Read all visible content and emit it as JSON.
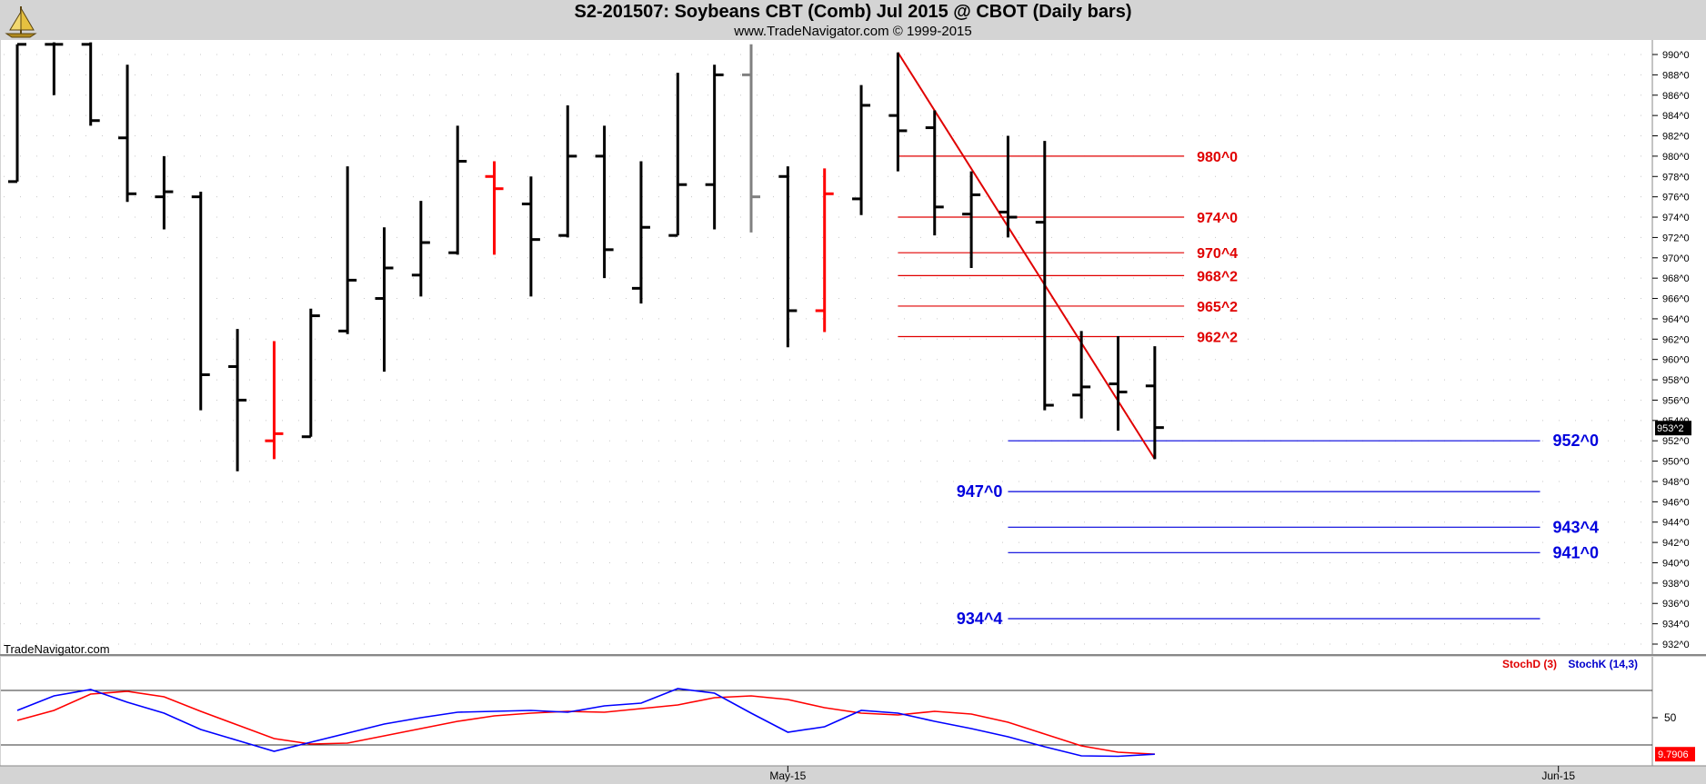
{
  "header": {
    "title": "S2-201507:  Soybeans CBT (Comb) Jul 2015 @ CBOT  (Daily bars)",
    "subtitle": "www.TradeNavigator.com © 1999-2015",
    "watermark": "TradeNavigator.com"
  },
  "colors": {
    "bar": "#000000",
    "down_bar": "#ff0000",
    "red_level": "#e00000",
    "blue_level": "#0000dd",
    "stoch_d": "#ff0000",
    "stoch_k": "#0000ff",
    "axis_marker": "#000000",
    "page_bg": "#d4d4d4",
    "plot_bg": "#ffffff"
  },
  "chart_data": [
    {
      "type": "ohlc",
      "ylim": [
        931,
        991.2
      ],
      "y_ticks": [
        "990^0",
        "988^0",
        "986^0",
        "984^0",
        "982^0",
        "980^0",
        "978^0",
        "976^0",
        "974^0",
        "972^0",
        "970^0",
        "968^0",
        "966^0",
        "964^0",
        "962^0",
        "960^0",
        "958^0",
        "956^0",
        "954^0",
        "952^0",
        "950^0",
        "948^0",
        "946^0",
        "944^0",
        "942^0",
        "940^0",
        "938^0",
        "936^0",
        "934^0",
        "932^0"
      ],
      "y_tick_values": [
        990,
        988,
        986,
        984,
        982,
        980,
        978,
        976,
        974,
        972,
        970,
        968,
        966,
        964,
        962,
        960,
        958,
        956,
        954,
        952,
        950,
        948,
        946,
        944,
        942,
        940,
        938,
        936,
        934,
        932
      ],
      "x_labels": [
        {
          "label": "May-15",
          "bar": 21
        },
        {
          "label": "Jun-15",
          "bar": 42
        }
      ],
      "current_price": {
        "label": "953^2",
        "value": 953.25
      },
      "bars": [
        {
          "o": 977.5,
          "h": 991.0,
          "l": 977.5,
          "c": 991.0,
          "color": "black"
        },
        {
          "o": 991.0,
          "h": 991.2,
          "l": 986.0,
          "c": 991.0,
          "color": "black"
        },
        {
          "o": 991.0,
          "h": 991.2,
          "l": 983.0,
          "c": 983.5,
          "color": "black"
        },
        {
          "o": 981.8,
          "h": 989.0,
          "l": 975.5,
          "c": 976.3,
          "color": "black"
        },
        {
          "o": 976.0,
          "h": 980.0,
          "l": 972.8,
          "c": 976.5,
          "color": "black"
        },
        {
          "o": 976.0,
          "h": 976.5,
          "l": 955.0,
          "c": 958.5,
          "color": "black"
        },
        {
          "o": 959.3,
          "h": 963.0,
          "l": 949.0,
          "c": 956.0,
          "color": "black"
        },
        {
          "o": 952.0,
          "h": 961.8,
          "l": 950.2,
          "c": 952.7,
          "color": "red"
        },
        {
          "o": 952.4,
          "h": 965.0,
          "l": 952.4,
          "c": 964.3,
          "color": "black"
        },
        {
          "o": 962.8,
          "h": 979.0,
          "l": 962.5,
          "c": 967.8,
          "color": "black"
        },
        {
          "o": 966.0,
          "h": 973.0,
          "l": 958.8,
          "c": 969.0,
          "color": "black"
        },
        {
          "o": 968.3,
          "h": 975.6,
          "l": 966.2,
          "c": 971.5,
          "color": "black"
        },
        {
          "o": 970.5,
          "h": 983.0,
          "l": 970.3,
          "c": 979.5,
          "color": "black"
        },
        {
          "o": 978.0,
          "h": 979.5,
          "l": 970.3,
          "c": 976.8,
          "color": "red"
        },
        {
          "o": 975.3,
          "h": 978.0,
          "l": 966.2,
          "c": 971.8,
          "color": "black"
        },
        {
          "o": 972.2,
          "h": 985.0,
          "l": 972.0,
          "c": 980.0,
          "color": "black"
        },
        {
          "o": 980.0,
          "h": 983.0,
          "l": 968.0,
          "c": 970.8,
          "color": "black"
        },
        {
          "o": 967.0,
          "h": 979.5,
          "l": 965.5,
          "c": 973.0,
          "color": "black"
        },
        {
          "o": 972.2,
          "h": 988.2,
          "l": 972.2,
          "c": 977.2,
          "color": "black"
        },
        {
          "o": 977.2,
          "h": 989.0,
          "l": 972.8,
          "c": 988.0,
          "color": "black"
        },
        {
          "o": 988.0,
          "h": 991.0,
          "l": 972.5,
          "c": 976.0,
          "color": "gray"
        },
        {
          "o": 978.0,
          "h": 979.0,
          "l": 961.2,
          "c": 964.8,
          "color": "black"
        },
        {
          "o": 964.8,
          "h": 978.8,
          "l": 962.7,
          "c": 976.3,
          "color": "red"
        },
        {
          "o": 975.8,
          "h": 987.0,
          "l": 974.2,
          "c": 985.0,
          "color": "black"
        },
        {
          "o": 984.0,
          "h": 990.2,
          "l": 978.5,
          "c": 982.5,
          "color": "black"
        },
        {
          "o": 982.8,
          "h": 984.5,
          "l": 972.2,
          "c": 975.0,
          "color": "black"
        },
        {
          "o": 974.3,
          "h": 978.5,
          "l": 969.0,
          "c": 976.2,
          "color": "black"
        },
        {
          "o": 974.5,
          "h": 982.0,
          "l": 972.0,
          "c": 974.0,
          "color": "black"
        },
        {
          "o": 973.5,
          "h": 981.5,
          "l": 955.0,
          "c": 955.5,
          "color": "black"
        },
        {
          "o": 956.5,
          "h": 962.8,
          "l": 954.2,
          "c": 957.3,
          "color": "black"
        },
        {
          "o": 957.6,
          "h": 962.3,
          "l": 953.0,
          "c": 956.8,
          "color": "black"
        },
        {
          "o": 957.4,
          "h": 961.3,
          "l": 950.2,
          "c": 953.3,
          "color": "black"
        }
      ],
      "trendline": {
        "from_bar": 24,
        "from_value": 990.2,
        "to_bar": 31,
        "to_value": 950.2,
        "color": "#e00000"
      },
      "levels": [
        {
          "label": "980^0",
          "value": 980.0,
          "color": "red",
          "from_bar": 24,
          "to_bar": 31.8,
          "label_side": "right"
        },
        {
          "label": "974^0",
          "value": 974.0,
          "color": "red",
          "from_bar": 24,
          "to_bar": 31.8,
          "label_side": "right"
        },
        {
          "label": "970^4",
          "value": 970.5,
          "color": "red",
          "from_bar": 24,
          "to_bar": 31.8,
          "label_side": "right"
        },
        {
          "label": "968^2",
          "value": 968.25,
          "color": "red",
          "from_bar": 24,
          "to_bar": 31.8,
          "label_side": "right"
        },
        {
          "label": "965^2",
          "value": 965.25,
          "color": "red",
          "from_bar": 24,
          "to_bar": 31.8,
          "label_side": "right"
        },
        {
          "label": "962^2",
          "value": 962.25,
          "color": "red",
          "from_bar": 24,
          "to_bar": 31.8,
          "label_side": "right"
        },
        {
          "label": "952^0",
          "value": 952.0,
          "color": "blue",
          "from_bar": 27,
          "to_bar": 41.5,
          "label_side": "right"
        },
        {
          "label": "947^0",
          "value": 947.0,
          "color": "blue",
          "from_bar": 27,
          "to_bar": 41.5,
          "label_side": "left"
        },
        {
          "label": "943^4",
          "value": 943.5,
          "color": "blue",
          "from_bar": 27,
          "to_bar": 41.5,
          "label_side": "right"
        },
        {
          "label": "941^0",
          "value": 941.0,
          "color": "blue",
          "from_bar": 27,
          "to_bar": 41.5,
          "label_side": "right"
        },
        {
          "label": "934^4",
          "value": 934.5,
          "color": "blue",
          "from_bar": 27,
          "to_bar": 41.5,
          "label_side": "left"
        }
      ]
    },
    {
      "type": "line",
      "legend": [
        "StochD (3)",
        "StochK (14,3)"
      ],
      "ylim": [
        0,
        100
      ],
      "y_ticks": [
        50
      ],
      "reference_lines": [
        80,
        20
      ],
      "current_value": {
        "label": "9.7906",
        "value": 9.79
      },
      "series": [
        {
          "name": "StochD (3)",
          "color": "#ff0000",
          "values": [
            47,
            58,
            76,
            79,
            73,
            57,
            42,
            27,
            21,
            22,
            30,
            38,
            46,
            52,
            55,
            57,
            56,
            60,
            64,
            72,
            74,
            70,
            61,
            55,
            53,
            57,
            54,
            45,
            32,
            19,
            12,
            9.8
          ]
        },
        {
          "name": "StochK (14,3)",
          "color": "#0000ff",
          "values": [
            58,
            74,
            81,
            67,
            55,
            37,
            25,
            13,
            23,
            33,
            43,
            50,
            56,
            57,
            58,
            56,
            63,
            66,
            82,
            77,
            55,
            34,
            40,
            58,
            55,
            46,
            38,
            29,
            18,
            8,
            7.5,
            9.8
          ]
        }
      ]
    }
  ]
}
